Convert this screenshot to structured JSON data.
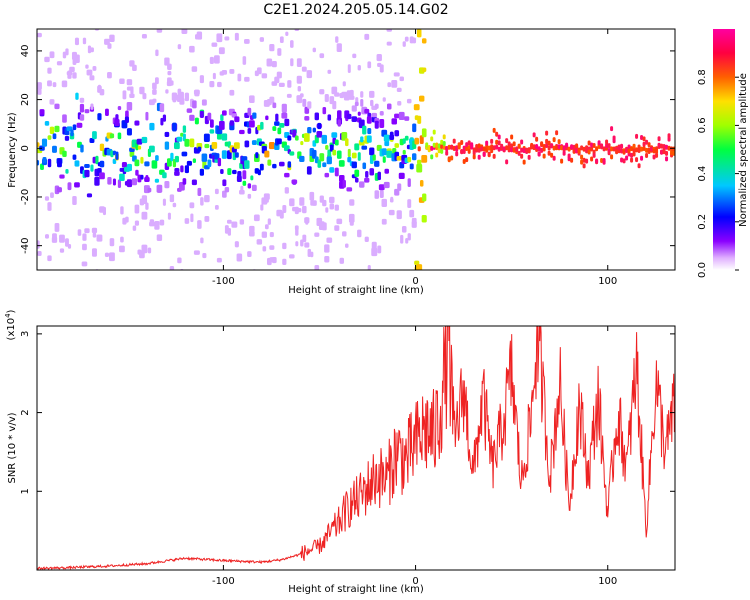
{
  "page_title": "C2E1.2024.205.05.14.G02",
  "chart_data": [
    {
      "type": "heatmap",
      "title": "C2E1.2024.205.05.14.G02",
      "xlabel": "Height of straight line (km)",
      "ylabel": "Frequency (Hz)",
      "xlim": [
        -197,
        135
      ],
      "ylim": [
        -50,
        49
      ],
      "xticks": [
        -100,
        0,
        100
      ],
      "yticks": [
        -40,
        -20,
        0,
        20,
        40
      ],
      "colorbar": {
        "label": "Normalized spectral amplitude",
        "range": [
          0,
          1
        ],
        "ticks": [
          "0.0",
          "0.2",
          "0.4",
          "0.6",
          "0.8"
        ],
        "colormap": [
          "#ffffff",
          "#8a00ff",
          "#0000ff",
          "#00d0ff",
          "#00ff40",
          "#c0ff00",
          "#ffd000",
          "#ff4000",
          "#ff0080"
        ]
      },
      "band_center_hz": 0,
      "notes_visible": []
    },
    {
      "type": "line",
      "xlabel": "Height of straight line (km)",
      "ylabel": "SNR (10 * v/v)",
      "y_multiplier_label": "(x10",
      "y_multiplier_exp": "4",
      "multiplier_close": ")",
      "xlim": [
        -197,
        135
      ],
      "ylim": [
        0,
        3.1
      ],
      "xticks": [
        -100,
        0,
        100
      ],
      "yticks": [
        1,
        2,
        3
      ],
      "series": [
        {
          "color": "#ee2222",
          "x": [
            -197,
            -180,
            -160,
            -140,
            -120,
            -100,
            -80,
            -70,
            -60,
            -50,
            -45,
            -40,
            -35,
            -30,
            -25,
            -20,
            -15,
            -10,
            -5,
            0,
            5,
            10,
            15,
            17,
            20,
            25,
            30,
            35,
            40,
            45,
            50,
            55,
            60,
            63,
            65,
            70,
            75,
            80,
            85,
            90,
            95,
            100,
            105,
            110,
            115,
            120,
            125,
            130,
            135
          ],
          "y": [
            0.02,
            0.03,
            0.05,
            0.08,
            0.15,
            0.12,
            0.1,
            0.13,
            0.2,
            0.3,
            0.45,
            0.6,
            0.8,
            0.9,
            1.05,
            1.2,
            1.15,
            1.5,
            1.4,
            1.6,
            1.8,
            1.7,
            2.4,
            3.1,
            1.6,
            2.3,
            1.2,
            2.2,
            1.3,
            1.8,
            2.5,
            1.1,
            1.9,
            2.9,
            2.6,
            1.2,
            2.4,
            0.8,
            2.1,
            1.2,
            2.2,
            0.7,
            2.0,
            1.3,
            2.6,
            0.5,
            2.4,
            1.5,
            2.1
          ]
        }
      ]
    }
  ]
}
